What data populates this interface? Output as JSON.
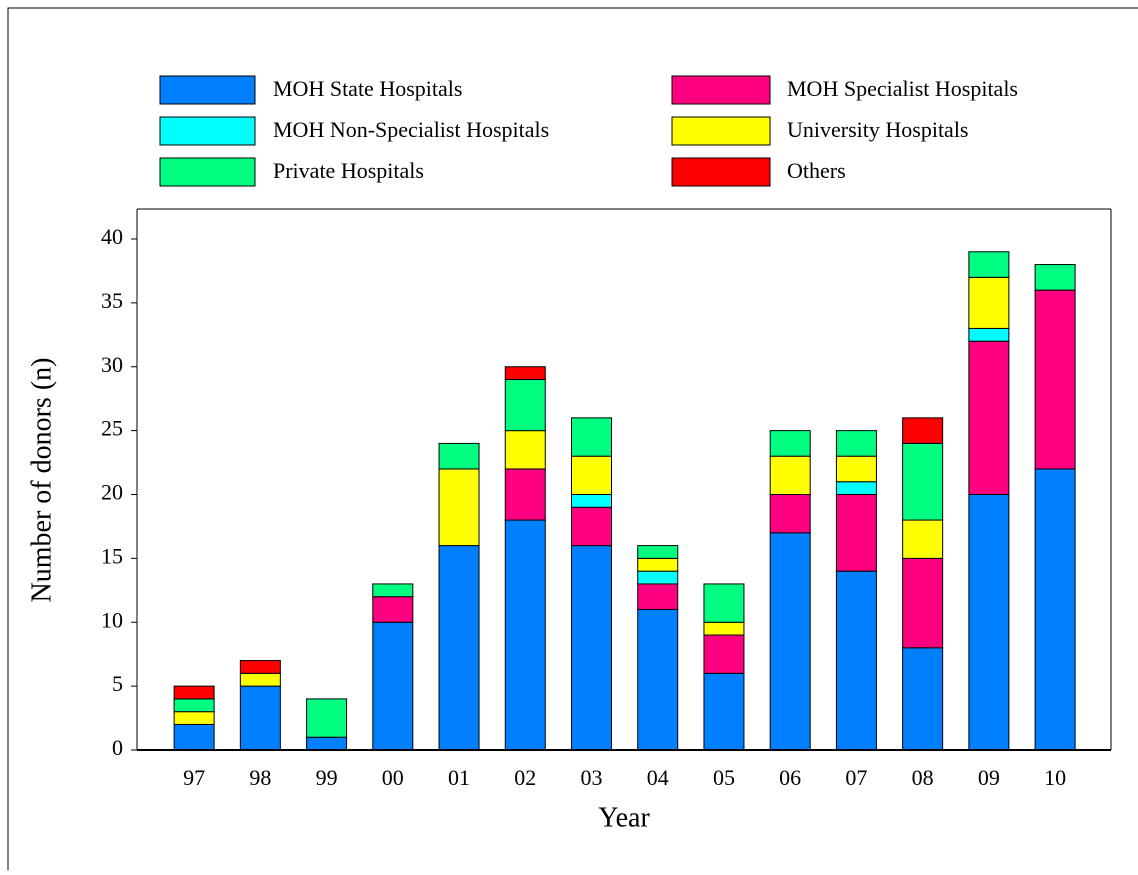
{
  "chart_data": {
    "type": "stacked_bar",
    "xlabel": "Year",
    "ylabel": "Number of donors (n)",
    "categories": [
      "97",
      "98",
      "99",
      "00",
      "01",
      "02",
      "03",
      "04",
      "05",
      "06",
      "07",
      "08",
      "09",
      "10"
    ],
    "series": [
      {
        "name": "MOH State Hospitals",
        "color": "#0080ff",
        "values": [
          2,
          5,
          1,
          10,
          16,
          18,
          16,
          11,
          6,
          17,
          14,
          8,
          20,
          22
        ]
      },
      {
        "name": "MOH Specialist Hospitals",
        "color": "#ff0080",
        "values": [
          0,
          0,
          0,
          2,
          0,
          4,
          3,
          2,
          3,
          3,
          6,
          7,
          12,
          14
        ]
      },
      {
        "name": "MOH Non-Specialist Hospitals",
        "color": "#00ffff",
        "values": [
          0,
          0,
          0,
          0,
          0,
          0,
          1,
          1,
          0,
          0,
          1,
          0,
          1,
          0
        ]
      },
      {
        "name": "University Hospitals",
        "color": "#ffff00",
        "values": [
          1,
          1,
          0,
          0,
          6,
          3,
          3,
          1,
          1,
          3,
          2,
          3,
          4,
          0
        ]
      },
      {
        "name": "Private Hospitals",
        "color": "#00ff80",
        "values": [
          1,
          0,
          3,
          1,
          2,
          4,
          3,
          1,
          3,
          2,
          2,
          6,
          2,
          2
        ]
      },
      {
        "name": "Others",
        "color": "#ff0000",
        "values": [
          1,
          1,
          0,
          0,
          0,
          1,
          0,
          0,
          0,
          0,
          0,
          2,
          0,
          0
        ]
      }
    ],
    "ylim": [
      0,
      40
    ],
    "yticks": [
      0,
      5,
      10,
      15,
      20,
      25,
      30,
      35,
      40
    ],
    "grid": false
  }
}
